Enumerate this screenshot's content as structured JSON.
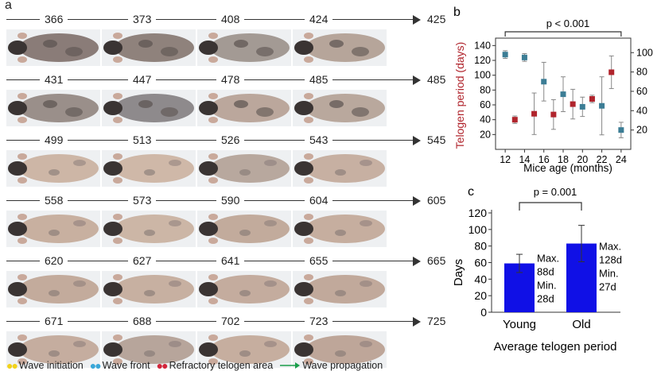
{
  "panel_a": {
    "letter": "a",
    "rows": [
      {
        "days": [
          "366",
          "373",
          "408",
          "424"
        ],
        "end": "425"
      },
      {
        "days": [
          "431",
          "447",
          "478",
          "485"
        ],
        "end": "485"
      },
      {
        "days": [
          "499",
          "513",
          "526",
          "543"
        ],
        "end": "545"
      },
      {
        "days": [
          "558",
          "573",
          "590",
          "604"
        ],
        "end": "605"
      },
      {
        "days": [
          "620",
          "627",
          "641",
          "655"
        ],
        "end": "665"
      },
      {
        "days": [
          "671",
          "688",
          "702",
          "723"
        ],
        "end": "725"
      }
    ],
    "legend": {
      "wave_initiation": "Wave initiation",
      "wave_front": "Wave front",
      "refractory": "Refractory telogen area",
      "wave_propagation": "Wave propagation"
    },
    "colors": {
      "wave_initiation": "#f2d21b",
      "wave_front": "#3aa7d8",
      "refractory": "#d2253a",
      "wave_propagation": "#1b9e4b"
    }
  },
  "panel_b": {
    "letter": "b",
    "p_value": "p < 0.001",
    "ylabel_left": "Telogen period (days)",
    "xlabel": "Mice age (months)",
    "x_ticks": [
      "12",
      "14",
      "16",
      "18",
      "20",
      "22",
      "24"
    ],
    "y_left_ticks": [
      "20",
      "40",
      "60",
      "80",
      "100",
      "120",
      "140"
    ],
    "y_right_ticks": [
      "20",
      "40",
      "60",
      "80",
      "100"
    ],
    "colors": {
      "red_series": "#b0242c",
      "blue_series": "#3c7d95"
    }
  },
  "panel_c": {
    "letter": "c",
    "p_value": "p = 0.001",
    "ylabel": "Days",
    "xlabel": "Average telogen period",
    "y_ticks": [
      "0",
      "20",
      "40",
      "60",
      "80",
      "100",
      "120"
    ],
    "young_note": [
      "Max.",
      "88d",
      "Min.",
      "28d"
    ],
    "old_note": [
      "Max.",
      "128d",
      "Min.",
      "27d"
    ],
    "bar_color": "#1010e6"
  },
  "chart_data": [
    {
      "type": "scatter",
      "title": "",
      "xlabel": "Mice age (months)",
      "ylabel": "Telogen period (days)",
      "xlim": [
        11,
        25
      ],
      "ylim": [
        0,
        150
      ],
      "y2lim": [
        0,
        115
      ],
      "annotations": [
        "p < 0.001"
      ],
      "series": [
        {
          "color": "#b0242c",
          "axis": "left",
          "x": [
            13,
            15,
            17,
            19,
            21,
            23
          ],
          "y": [
            40,
            48,
            47,
            61,
            68,
            104
          ],
          "err": [
            5,
            28,
            20,
            20,
            5,
            22
          ]
        },
        {
          "color": "#3c7d95",
          "axis": "right",
          "x": [
            12,
            14,
            16,
            18,
            20,
            22,
            24
          ],
          "y": [
            98,
            95,
            70,
            57,
            44,
            45,
            20
          ],
          "err": [
            4,
            4,
            20,
            18,
            10,
            30,
            8
          ]
        }
      ]
    },
    {
      "type": "bar",
      "title": "",
      "xlabel": "Average telogen period",
      "ylabel": "Days",
      "categories": [
        "Young",
        "Old"
      ],
      "values": [
        59,
        83
      ],
      "errors": [
        11,
        22
      ],
      "ylim": [
        0,
        120
      ],
      "annotations": [
        "p = 0.001"
      ]
    }
  ]
}
